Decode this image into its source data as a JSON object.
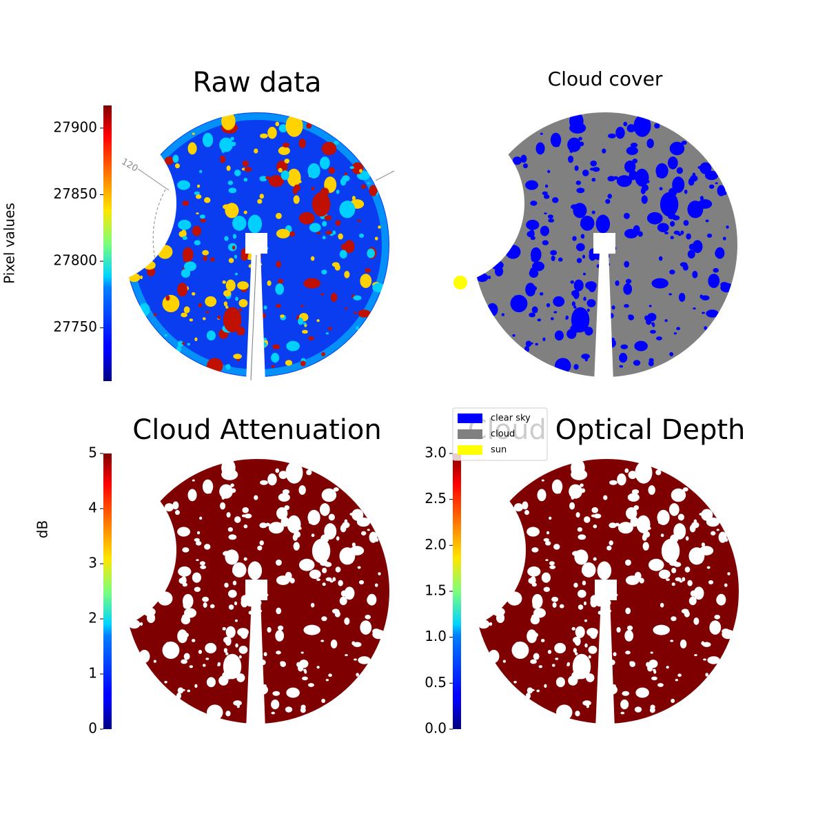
{
  "chart_data": [
    {
      "type": "image",
      "title": "Raw data",
      "colormap": "jet",
      "ylabel": "Pixel values",
      "ylim": [
        27710,
        27917
      ],
      "yticks": [
        27750,
        27800,
        27850,
        27900
      ],
      "annotation": "120"
    },
    {
      "type": "image",
      "title": "Cloud cover",
      "series": [
        {
          "name": "clear sky",
          "color": "#0000ff"
        },
        {
          "name": "cloud",
          "color": "#808080"
        },
        {
          "name": "sun",
          "color": "#ffff00"
        }
      ]
    },
    {
      "type": "image",
      "title": "Cloud Attenuation",
      "colormap": "jet",
      "ylabel": "dB",
      "ylim": [
        0,
        5
      ],
      "yticks": [
        0,
        1,
        2,
        3,
        4,
        5
      ]
    },
    {
      "type": "image",
      "title": "Cloud Optical Depth",
      "colormap": "jet",
      "ylim": [
        0,
        3
      ],
      "yticks": [
        {
          "value": 0,
          "label": "0.0"
        },
        0.5,
        {
          "value": 1,
          "label": "1.0"
        },
        1.5,
        {
          "value": 2,
          "label": "2.0"
        },
        2.5,
        {
          "value": 3,
          "label": "3.0"
        }
      ]
    }
  ]
}
